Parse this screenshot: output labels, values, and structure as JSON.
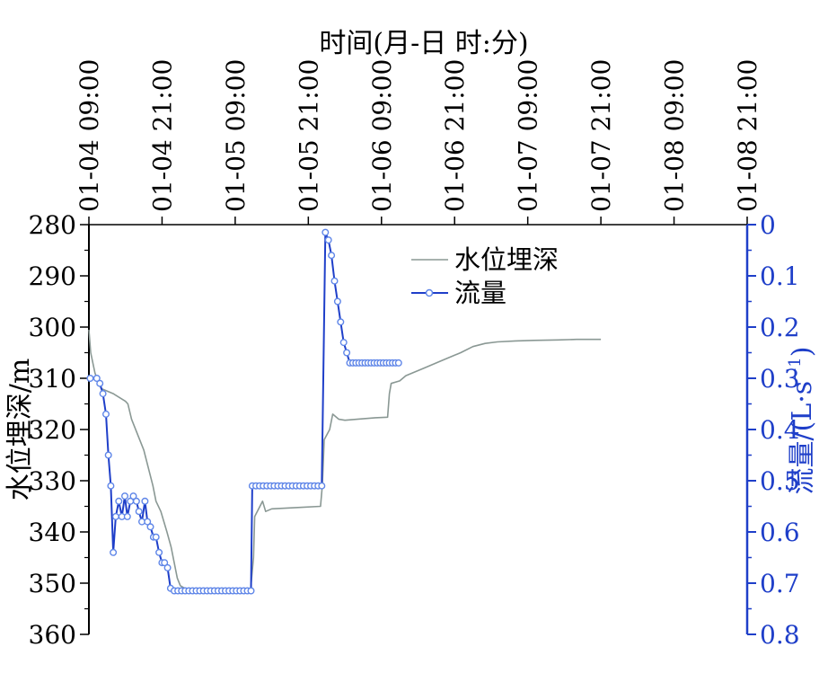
{
  "chart_data": {
    "type": "line",
    "title": "",
    "xlabel": "时间(月-日 时:分)",
    "ylabel_left": "水位埋深/m",
    "ylabel_right": "流量/(L·s",
    "ylabel_right_sup": "−1",
    "ylabel_right_tail": ")",
    "x_tick_labels": [
      "01-04 09:00",
      "01-04 21:00",
      "01-05 09:00",
      "01-05 21:00",
      "01-06 09:00",
      "01-06 21:00",
      "01-07 09:00",
      "01-07 21:00",
      "01-08 09:00",
      "01-08 21:00"
    ],
    "x_unit": "hours since 01-04 09:00",
    "xlim": [
      0,
      108
    ],
    "y_left": {
      "lim": [
        280,
        360
      ],
      "inverted": true,
      "ticks": [
        280,
        290,
        300,
        310,
        320,
        330,
        340,
        350,
        360
      ],
      "tick_labels": [
        "280",
        "290",
        "300",
        "310",
        "320",
        "330",
        "340",
        "350",
        "360"
      ]
    },
    "y_right": {
      "lim": [
        0,
        0.8
      ],
      "inverted": true,
      "ticks": [
        0,
        0.1,
        0.2,
        0.3,
        0.4,
        0.5,
        0.6,
        0.7,
        0.8
      ],
      "tick_labels": [
        "0",
        "0.1",
        "0.2",
        "0.3",
        "0.4",
        "0.5",
        "0.6",
        "0.7",
        "0.8"
      ]
    },
    "legend": {
      "placement": "top-center"
    },
    "grid": false,
    "series": [
      {
        "name": "水位埋深",
        "axis": "left",
        "color": "#8a9894",
        "marker": "none",
        "points": [
          [
            0,
            300.5
          ],
          [
            0.3,
            305
          ],
          [
            1,
            309
          ],
          [
            2,
            312
          ],
          [
            4,
            313
          ],
          [
            6,
            314.5
          ],
          [
            6.4,
            315
          ],
          [
            7,
            318
          ],
          [
            9,
            324
          ],
          [
            10.5,
            331
          ],
          [
            11,
            334
          ],
          [
            11.8,
            336
          ],
          [
            12.8,
            340
          ],
          [
            13.5,
            343
          ],
          [
            14,
            346
          ],
          [
            14.5,
            349
          ],
          [
            15,
            350.5
          ],
          [
            16,
            351.2
          ],
          [
            18,
            351.4
          ],
          [
            20,
            351.5
          ],
          [
            25,
            351.5
          ],
          [
            26.5,
            351.5
          ],
          [
            27,
            345
          ],
          [
            27.2,
            337
          ],
          [
            28.5,
            334
          ],
          [
            29,
            336
          ],
          [
            30,
            335.5
          ],
          [
            35,
            335.2
          ],
          [
            38,
            335
          ],
          [
            38.3,
            331
          ],
          [
            38.6,
            322
          ],
          [
            39.5,
            320
          ],
          [
            40,
            317
          ],
          [
            41,
            318
          ],
          [
            42,
            318.2
          ],
          [
            44,
            318
          ],
          [
            47,
            317.7
          ],
          [
            49,
            317.6
          ],
          [
            49.3,
            313
          ],
          [
            49.6,
            311
          ],
          [
            51,
            310.5
          ],
          [
            52,
            309.5
          ],
          [
            55,
            308
          ],
          [
            58,
            306.5
          ],
          [
            61,
            305
          ],
          [
            63,
            303.8
          ],
          [
            65,
            303.2
          ],
          [
            67,
            302.9
          ],
          [
            70,
            302.7
          ],
          [
            73,
            302.6
          ],
          [
            77,
            302.5
          ],
          [
            80,
            302.4
          ],
          [
            84,
            302.4
          ]
        ]
      },
      {
        "name": "流量",
        "axis": "right",
        "color": "#1f3fc9",
        "marker_color": "#5f86e8",
        "marker": "circle",
        "points": [
          [
            0.2,
            0.3
          ],
          [
            1.3,
            0.3
          ],
          [
            1.8,
            0.31
          ],
          [
            2.3,
            0.33
          ],
          [
            2.8,
            0.37
          ],
          [
            3.2,
            0.45
          ],
          [
            3.6,
            0.51
          ],
          [
            4,
            0.64
          ],
          [
            4.4,
            0.57
          ],
          [
            4.9,
            0.54
          ],
          [
            5.4,
            0.57
          ],
          [
            5.9,
            0.53
          ],
          [
            6.3,
            0.57
          ],
          [
            6.8,
            0.54
          ],
          [
            7.3,
            0.53
          ],
          [
            7.8,
            0.54
          ],
          [
            8.2,
            0.56
          ],
          [
            8.7,
            0.58
          ],
          [
            9.2,
            0.54
          ],
          [
            9.6,
            0.58
          ],
          [
            10.1,
            0.59
          ],
          [
            10.6,
            0.61
          ],
          [
            11,
            0.61
          ],
          [
            11.5,
            0.64
          ],
          [
            12,
            0.66
          ],
          [
            12.4,
            0.66
          ],
          [
            12.9,
            0.67
          ],
          [
            13.4,
            0.71
          ],
          [
            14,
            0.715
          ],
          [
            14.6,
            0.715
          ],
          [
            15.2,
            0.715
          ],
          [
            15.8,
            0.715
          ],
          [
            16.4,
            0.715
          ],
          [
            17,
            0.715
          ],
          [
            17.6,
            0.715
          ],
          [
            18.2,
            0.715
          ],
          [
            18.8,
            0.715
          ],
          [
            19.4,
            0.715
          ],
          [
            20,
            0.715
          ],
          [
            20.6,
            0.715
          ],
          [
            21.2,
            0.715
          ],
          [
            21.8,
            0.715
          ],
          [
            22.4,
            0.715
          ],
          [
            23,
            0.715
          ],
          [
            23.6,
            0.715
          ],
          [
            24.2,
            0.715
          ],
          [
            24.8,
            0.715
          ],
          [
            25.4,
            0.715
          ],
          [
            26,
            0.715
          ],
          [
            26.6,
            0.715
          ],
          [
            26.8,
            0.51
          ],
          [
            27.4,
            0.51
          ],
          [
            28,
            0.51
          ],
          [
            28.6,
            0.51
          ],
          [
            29.2,
            0.51
          ],
          [
            29.8,
            0.51
          ],
          [
            30.4,
            0.51
          ],
          [
            31,
            0.51
          ],
          [
            31.6,
            0.51
          ],
          [
            32.2,
            0.51
          ],
          [
            32.8,
            0.51
          ],
          [
            33.4,
            0.51
          ],
          [
            34,
            0.51
          ],
          [
            34.6,
            0.51
          ],
          [
            35.2,
            0.51
          ],
          [
            35.8,
            0.51
          ],
          [
            36.4,
            0.51
          ],
          [
            37,
            0.51
          ],
          [
            37.6,
            0.51
          ],
          [
            38.2,
            0.51
          ],
          [
            38.8,
            0.015
          ],
          [
            39.3,
            0.03
          ],
          [
            39.8,
            0.06
          ],
          [
            40.3,
            0.11
          ],
          [
            40.8,
            0.15
          ],
          [
            41.3,
            0.19
          ],
          [
            41.8,
            0.23
          ],
          [
            42.3,
            0.25
          ],
          [
            42.8,
            0.27
          ],
          [
            43.3,
            0.27
          ],
          [
            43.8,
            0.27
          ],
          [
            44.3,
            0.27
          ],
          [
            44.8,
            0.27
          ],
          [
            45.3,
            0.27
          ],
          [
            45.8,
            0.27
          ],
          [
            46.3,
            0.27
          ],
          [
            46.8,
            0.27
          ],
          [
            47.3,
            0.27
          ],
          [
            47.8,
            0.27
          ],
          [
            48.3,
            0.27
          ],
          [
            48.8,
            0.27
          ],
          [
            49.3,
            0.27
          ],
          [
            49.8,
            0.27
          ],
          [
            50.3,
            0.27
          ],
          [
            50.8,
            0.27
          ]
        ]
      }
    ]
  }
}
